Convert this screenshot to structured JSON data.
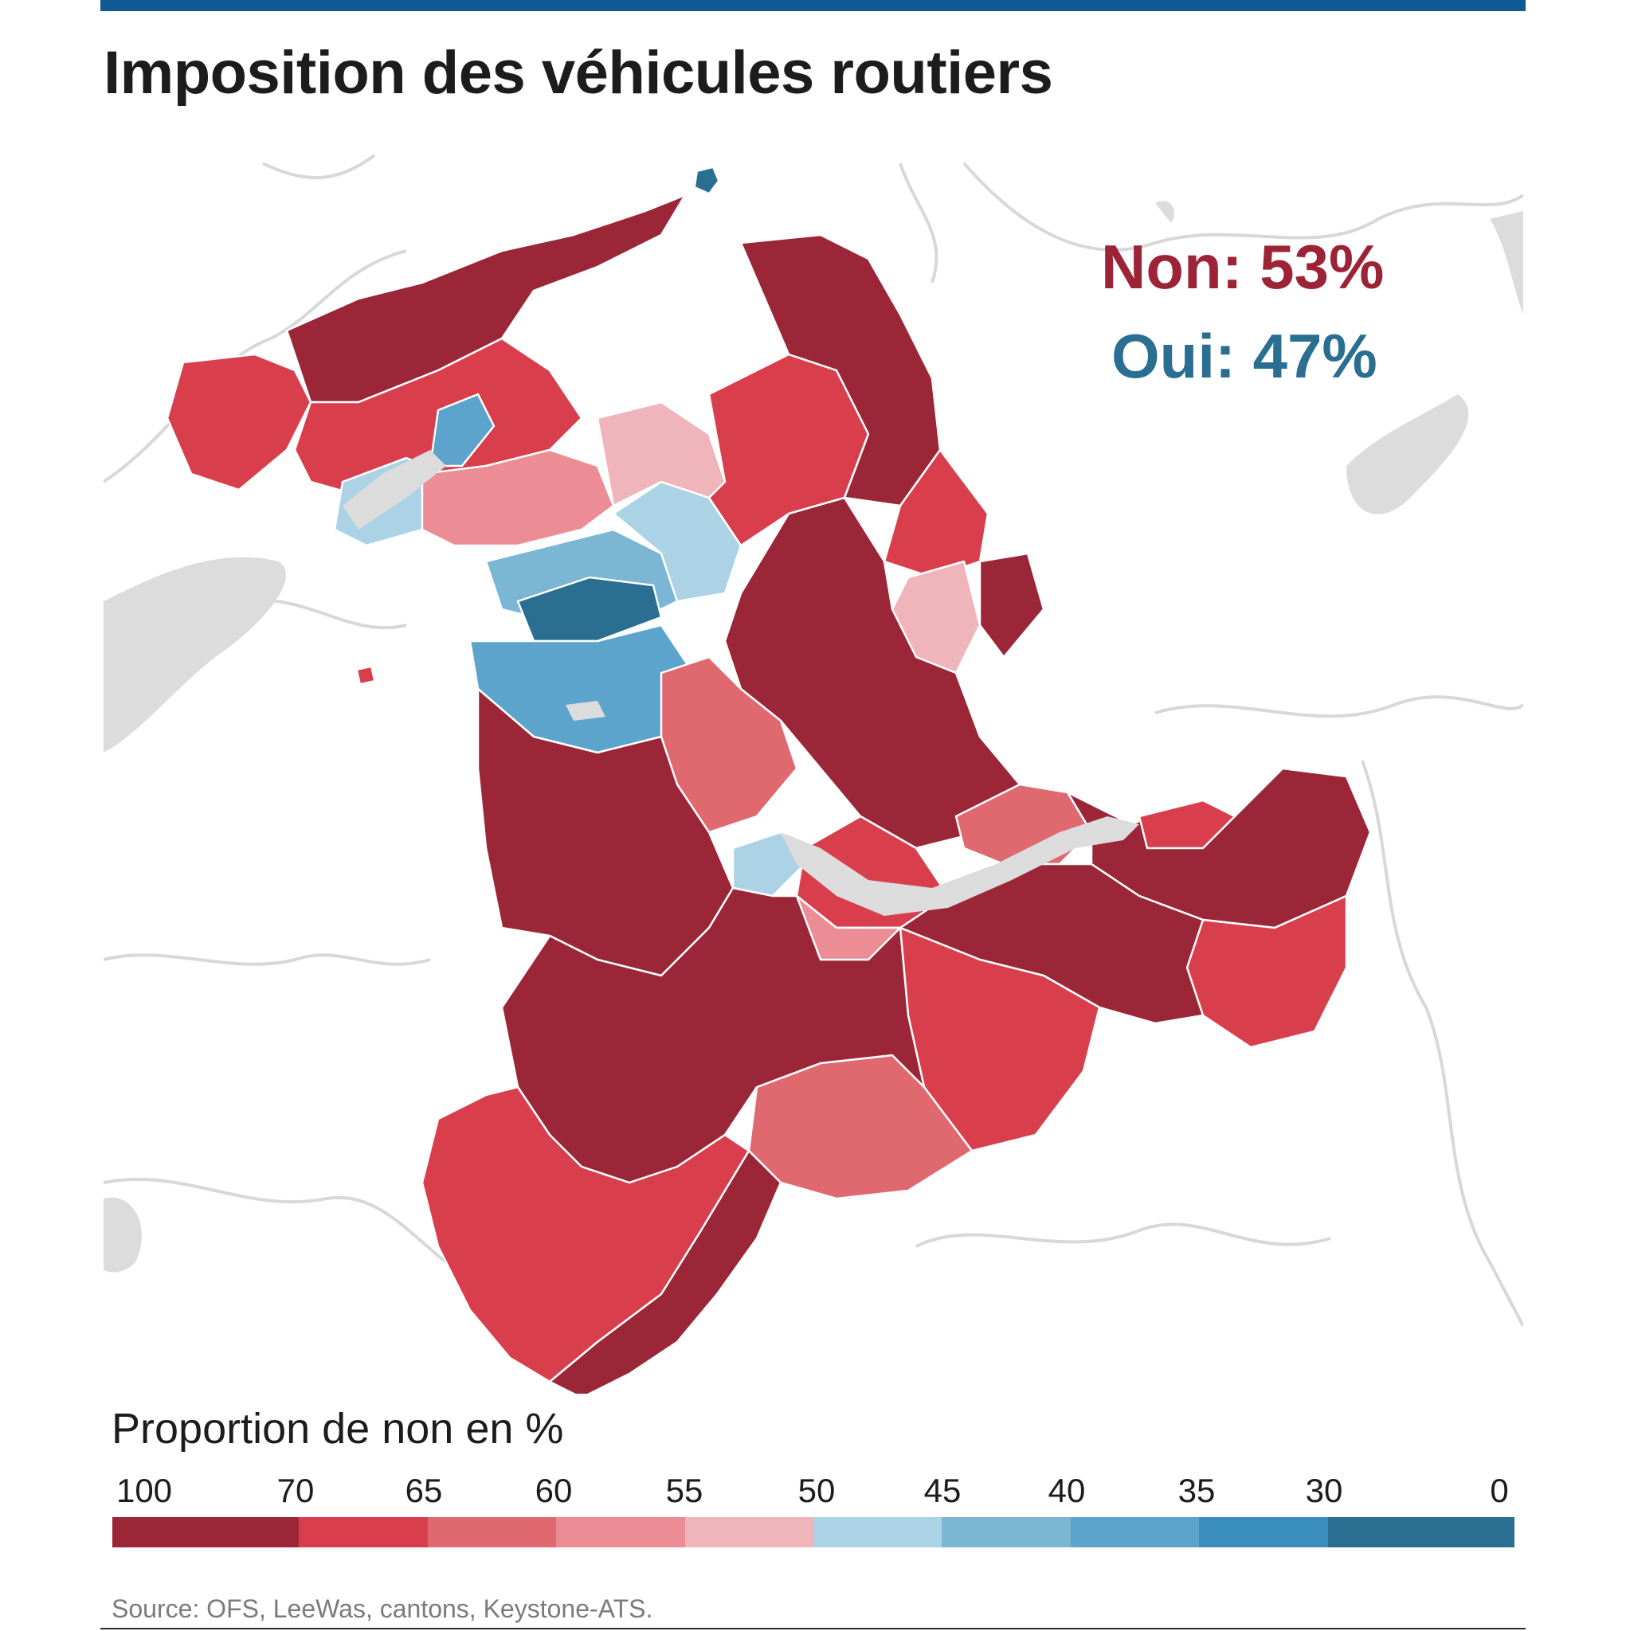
{
  "title": "Imposition des véhicules routiers",
  "results": {
    "no": "Non: 53%",
    "yes": "Oui: 47%"
  },
  "legend": {
    "title": "Proportion de non en %",
    "ticks": [
      "100",
      "70",
      "65",
      "60",
      "55",
      "50",
      "45",
      "40",
      "35",
      "30",
      "0"
    ],
    "colors": [
      "#9b2637",
      "#d93e4c",
      "#e0696f",
      "#ec8c94",
      "#f0b4bb",
      "#acd2e6",
      "#7bb6d5",
      "#5ca4cb",
      "#3a8ebd",
      "#2a6f91"
    ]
  },
  "source": "Source:  OFS, LeeWas, cantons, Keystone-ATS.",
  "colors": {
    "accent_bar": "#0f5a94",
    "no": "#9d2336",
    "yes": "#2a6f91",
    "lakes": "#dcdcdc",
    "borders": "#d8d8d8"
  }
}
